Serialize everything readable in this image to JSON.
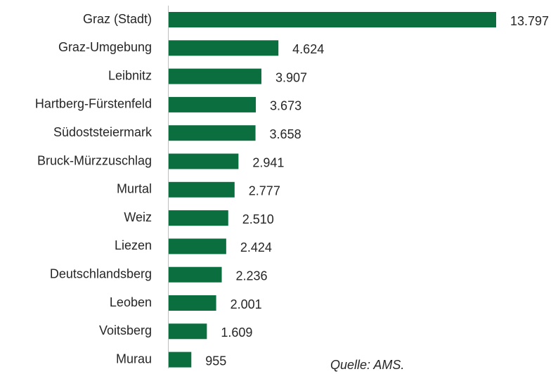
{
  "chart_data": {
    "type": "bar",
    "orientation": "horizontal",
    "categories": [
      "Graz (Stadt)",
      "Graz-Umgebung",
      "Leibnitz",
      "Hartberg-Fürstenfeld",
      "Südoststeiermark",
      "Bruck-Mürzzuschlag",
      "Murtal",
      "Weiz",
      "Liezen",
      "Deutschlandsberg",
      "Leoben",
      "Voitsberg",
      "Murau"
    ],
    "values": [
      13797,
      4624,
      3907,
      3673,
      3658,
      2941,
      2777,
      2510,
      2424,
      2236,
      2001,
      1609,
      955
    ],
    "value_labels": [
      "13.797",
      "4.624",
      "3.907",
      "3.673",
      "3.658",
      "2.941",
      "2.777",
      "2.510",
      "2.424",
      "2.236",
      "2.001",
      "1.609",
      "955"
    ],
    "color": "#0b6e3f",
    "annotation": "Quelle: AMS."
  }
}
